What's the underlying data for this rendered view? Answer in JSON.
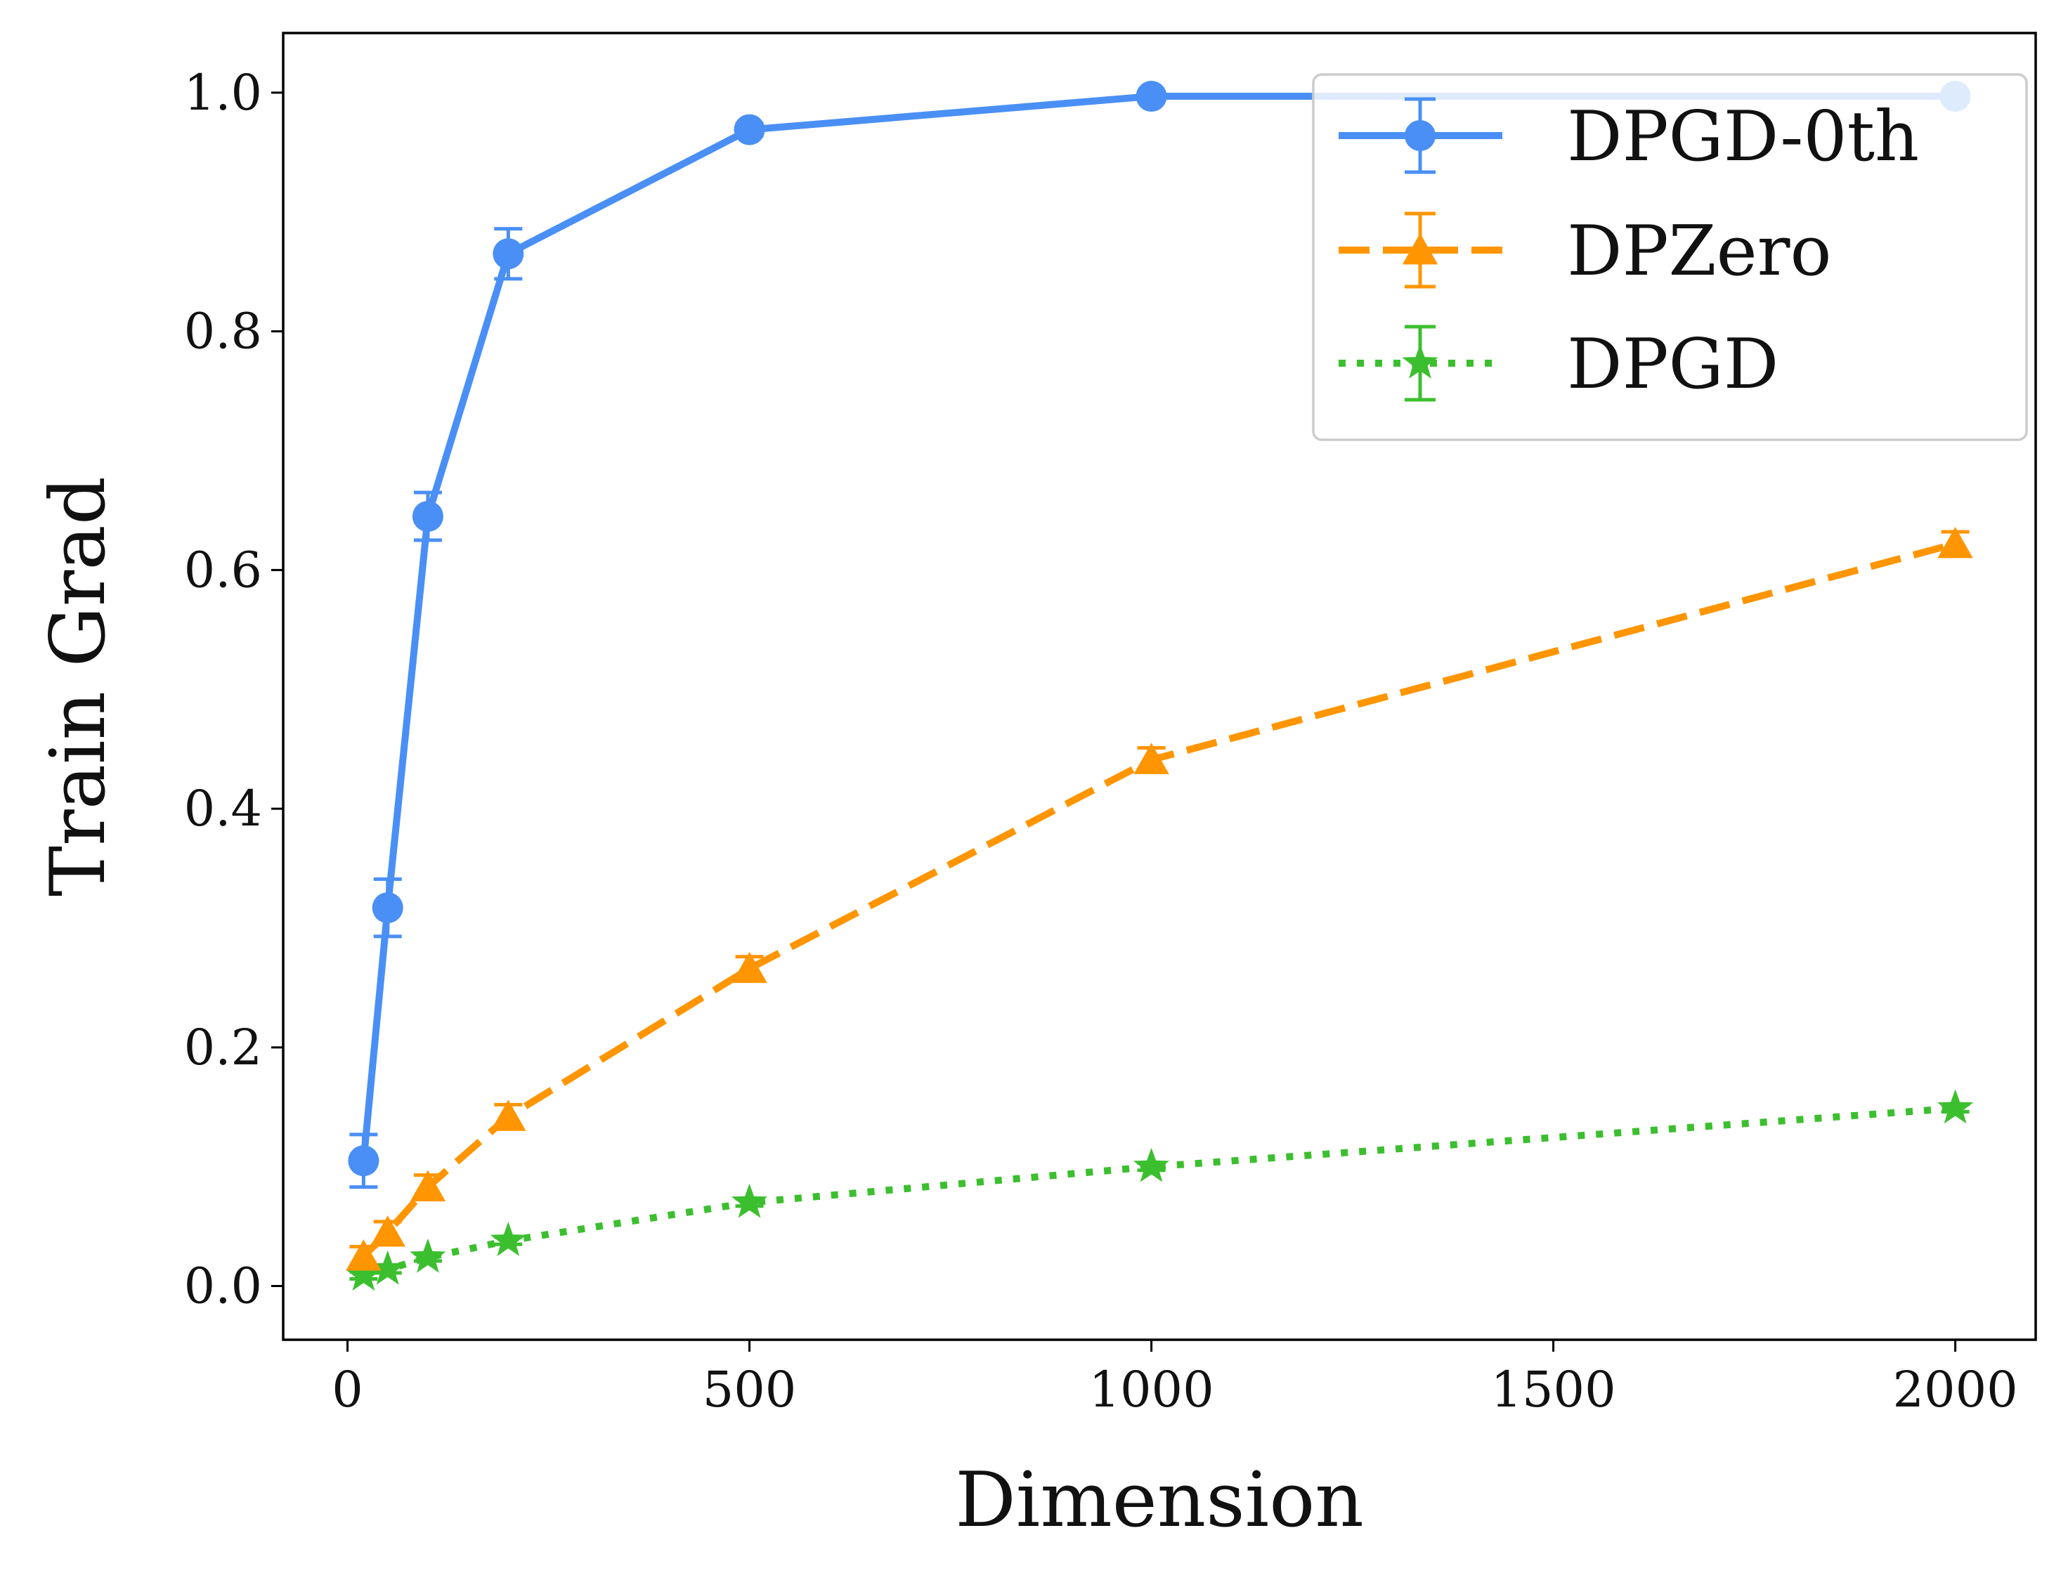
{
  "chart_data": {
    "type": "line",
    "title": "",
    "xlabel": "Dimension",
    "ylabel": "Train Grad",
    "xlim": [
      -80,
      2100
    ],
    "ylim": [
      -0.045,
      1.05
    ],
    "xticks": [
      0,
      500,
      1000,
      1500,
      2000
    ],
    "yticks": [
      0.0,
      0.2,
      0.4,
      0.6,
      0.8,
      1.0
    ],
    "xtick_labels": [
      "0",
      "500",
      "1000",
      "1500",
      "2000"
    ],
    "ytick_labels": [
      "0.0",
      "0.2",
      "0.4",
      "0.6",
      "0.8",
      "1.0"
    ],
    "grid": false,
    "legend_position": "top-right",
    "x": [
      20,
      50,
      100,
      200,
      500,
      1000,
      2000
    ],
    "series": [
      {
        "name": "DPGD-0th",
        "color": "#4a8ff5",
        "style": "solid",
        "marker": "circle",
        "values": [
          0.105,
          0.317,
          0.645,
          0.865,
          0.969,
          0.997,
          0.997
        ],
        "errors": [
          0.022,
          0.024,
          0.02,
          0.021,
          0.005,
          0.002,
          0.002
        ]
      },
      {
        "name": "DPZero",
        "color": "#ff9500",
        "style": "dashed",
        "marker": "triangle",
        "values": [
          0.025,
          0.045,
          0.083,
          0.142,
          0.266,
          0.441,
          0.622
        ],
        "errors": [
          0.008,
          0.009,
          0.01,
          0.01,
          0.01,
          0.01,
          0.01
        ]
      },
      {
        "name": "DPGD",
        "color": "#3cbf2f",
        "style": "dotted",
        "marker": "star",
        "values": [
          0.009,
          0.014,
          0.024,
          0.038,
          0.07,
          0.1,
          0.149
        ],
        "errors": [
          0.003,
          0.003,
          0.003,
          0.003,
          0.003,
          0.003,
          0.003
        ]
      }
    ]
  }
}
